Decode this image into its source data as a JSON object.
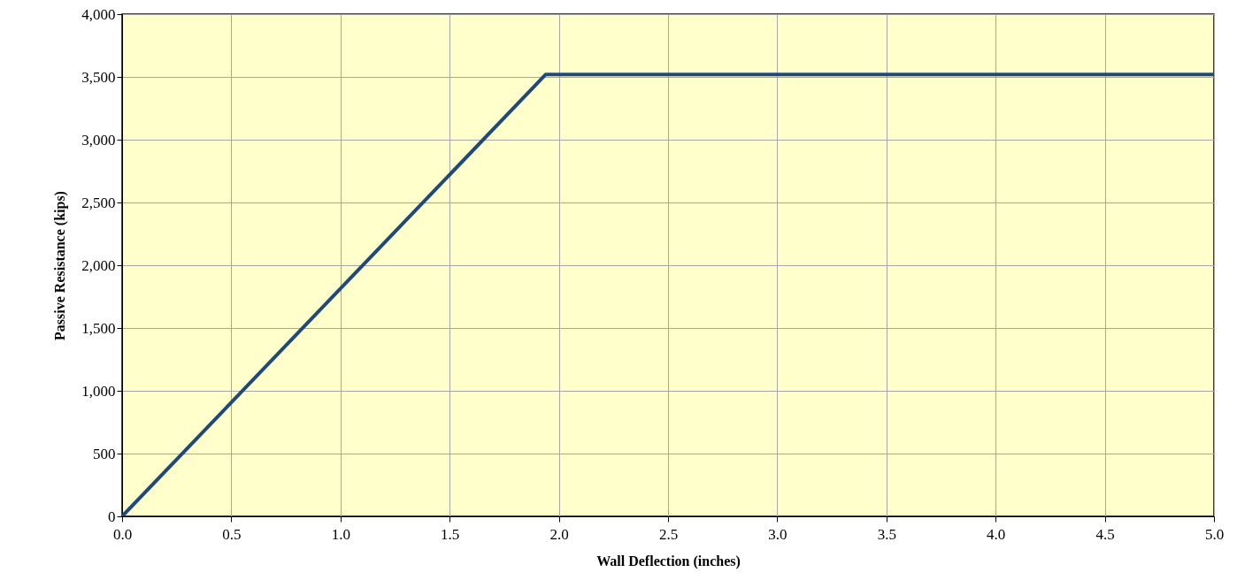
{
  "chart_data": {
    "type": "line",
    "xlabel": "Wall Deflection (inches)",
    "ylabel": "Passive Resistance (kips)",
    "x": [
      0,
      1.94,
      5.0
    ],
    "series": [
      {
        "color": "#1f497d",
        "values": [
          0,
          3520,
          3520
        ]
      }
    ],
    "xlim": [
      0,
      5
    ],
    "ylim": [
      0,
      4000
    ],
    "xticks": [
      {
        "value": 0,
        "label": "0.0"
      },
      {
        "value": 0.5,
        "label": "0.5"
      },
      {
        "value": 1,
        "label": "1.0"
      },
      {
        "value": 1.5,
        "label": "1.5"
      },
      {
        "value": 2,
        "label": "2.0"
      },
      {
        "value": 2.5,
        "label": "2.5"
      },
      {
        "value": 3,
        "label": "3.0"
      },
      {
        "value": 3.5,
        "label": "3.5"
      },
      {
        "value": 4,
        "label": "4.0"
      },
      {
        "value": 4.5,
        "label": "4.5"
      },
      {
        "value": 5,
        "label": "5.0"
      }
    ],
    "yticks": [
      0,
      500,
      {
        "value": 1000,
        "label": "1,000"
      },
      {
        "value": 1500,
        "label": "1,500"
      },
      {
        "value": 2000,
        "label": "2,000"
      },
      {
        "value": 2500,
        "label": "2,500"
      },
      {
        "value": 3000,
        "label": "3,000"
      },
      {
        "value": 3500,
        "label": "3,500"
      },
      {
        "value": 4000,
        "label": "4,000"
      }
    ],
    "grid": true,
    "legend": false,
    "marker": "none",
    "line_style": "solid"
  }
}
